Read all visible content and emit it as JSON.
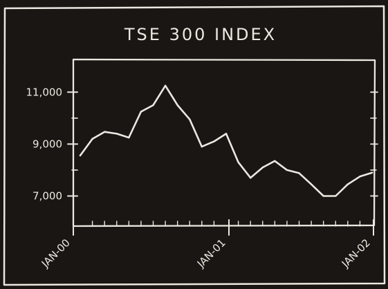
{
  "chart_data": {
    "type": "line",
    "title": "TSE 300 INDEX",
    "xlabel": "",
    "ylabel": "",
    "x_tick_labels": [
      "JAN-00",
      "JAN-01",
      "JAN-02"
    ],
    "y_tick_labels": [
      "11,000",
      "9,000",
      "7,000"
    ],
    "y_ticks": [
      11000,
      9000,
      7000
    ],
    "xlim": [
      0,
      24
    ],
    "ylim": [
      6000,
      12100
    ],
    "grid": false,
    "series": [
      {
        "name": "",
        "x": [
          0,
          1,
          2,
          3,
          4,
          5,
          6,
          7,
          8,
          9,
          10,
          11,
          12,
          13,
          14,
          15,
          16,
          17,
          18,
          19,
          20,
          21,
          22,
          23,
          24
        ],
        "values": [
          8560,
          9200,
          9470,
          9400,
          9250,
          10250,
          10500,
          11250,
          10500,
          9950,
          8900,
          9100,
          9400,
          8300,
          7700,
          8100,
          8350,
          8000,
          7880,
          7450,
          7000,
          7000,
          7450,
          7750,
          7900
        ]
      }
    ]
  },
  "colors": {
    "background": "#1a1613",
    "chalk": "#ece8e1"
  }
}
